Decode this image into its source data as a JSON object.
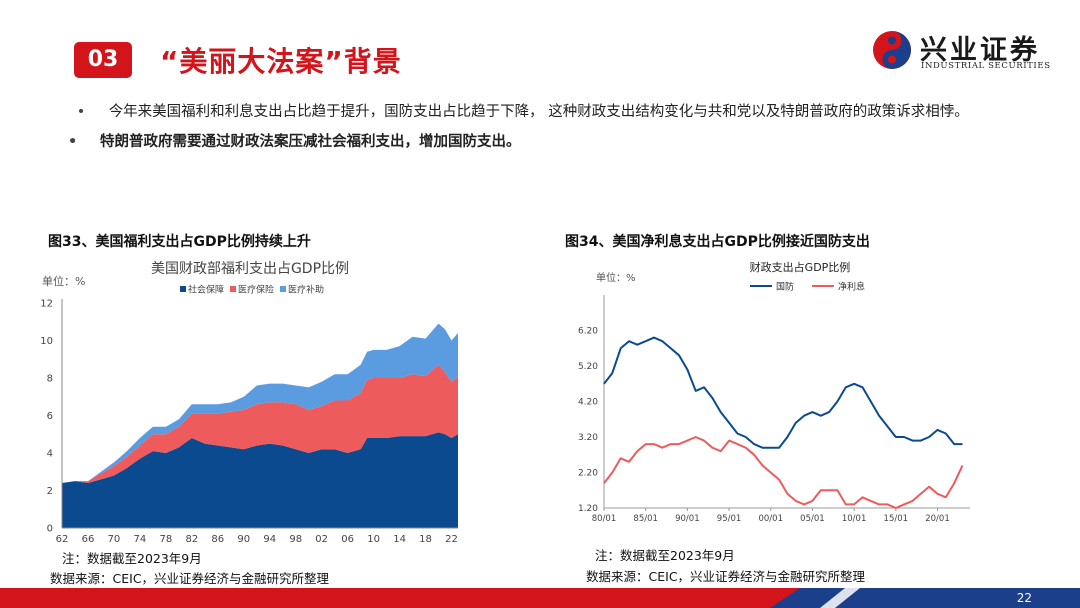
{
  "header": {
    "section_number": "03",
    "title": "“美丽大法案”背景",
    "logo_cn": "兴业证券",
    "logo_en": "INDUSTRIAL SECURITIES",
    "brand_color": "#d4141b"
  },
  "bullets": [
    {
      "marker": "•",
      "text": "今年来美国福利和利息支出占比趋于提升，国防支出占比趋于下降，  这种财政支出结构变化与共和党以及特朗普政府的政策诉求相悖。"
    },
    {
      "marker": "•",
      "text": "特朗普政府需要通过财政法案压减社会福利支出，增加国防支出。"
    }
  ],
  "figure33": {
    "caption": "图33、美国福利支出占GDP比例持续上升",
    "note": "注：数据截至2023年9月",
    "source": "数据来源：CEIC，兴业证券经济与金融研究所整理"
  },
  "figure34": {
    "caption": "图34、美国净利息支出占GDP比例接近国防支出",
    "note": "注：数据截至2023年9月",
    "source": "数据来源：CEIC，兴业证券经济与金融研究所整理"
  },
  "chart_data": [
    {
      "type": "area",
      "stacked": true,
      "title": "美国财政部福利支出占GDP比例",
      "unit_label": "单位：%",
      "ylim": [
        0,
        12
      ],
      "yticks": [
        "0",
        "2",
        "4",
        "6",
        "8",
        "10",
        "12"
      ],
      "x_tick_labels": [
        "62",
        "66",
        "70",
        "74",
        "78",
        "82",
        "86",
        "90",
        "94",
        "98",
        "02",
        "06",
        "10",
        "14",
        "18",
        "22"
      ],
      "x_start_year": 1962,
      "x_end_year": 2023,
      "x": [
        1962,
        1964,
        1966,
        1968,
        1970,
        1972,
        1974,
        1976,
        1978,
        1980,
        1982,
        1984,
        1986,
        1988,
        1990,
        1992,
        1994,
        1996,
        1998,
        2000,
        2002,
        2004,
        2006,
        2008,
        2009,
        2010,
        2012,
        2014,
        2016,
        2018,
        2020,
        2021,
        2022,
        2023
      ],
      "series": [
        {
          "name": "社会保障",
          "color": "#0b4a8f",
          "values": [
            2.4,
            2.5,
            2.4,
            2.6,
            2.8,
            3.2,
            3.7,
            4.1,
            4.0,
            4.3,
            4.8,
            4.5,
            4.4,
            4.3,
            4.2,
            4.4,
            4.5,
            4.4,
            4.2,
            4.0,
            4.2,
            4.2,
            4.0,
            4.2,
            4.8,
            4.8,
            4.8,
            4.9,
            4.9,
            4.9,
            5.1,
            5.0,
            4.8,
            5.0
          ]
        },
        {
          "name": "医疗保险",
          "color": "#ee5b5d",
          "values": [
            0.0,
            0.0,
            0.1,
            0.3,
            0.5,
            0.6,
            0.7,
            0.9,
            1.0,
            1.1,
            1.3,
            1.6,
            1.7,
            1.9,
            2.1,
            2.2,
            2.2,
            2.3,
            2.4,
            2.3,
            2.3,
            2.6,
            2.8,
            3.0,
            3.1,
            3.2,
            3.2,
            3.1,
            3.3,
            3.2,
            3.6,
            3.3,
            3.0,
            3.1
          ]
        },
        {
          "name": "医疗补助",
          "color": "#5b9be0",
          "values": [
            0.0,
            0.0,
            0.0,
            0.1,
            0.2,
            0.3,
            0.4,
            0.4,
            0.4,
            0.4,
            0.5,
            0.5,
            0.5,
            0.5,
            0.7,
            1.0,
            1.0,
            1.0,
            1.0,
            1.2,
            1.3,
            1.4,
            1.4,
            1.5,
            1.5,
            1.5,
            1.5,
            1.7,
            2.0,
            2.0,
            2.2,
            2.3,
            2.2,
            2.3
          ]
        }
      ]
    },
    {
      "type": "line",
      "title": "财政支出占GDP比例",
      "unit_label": "单位：%",
      "ylim": [
        1.2,
        7.2
      ],
      "yticks": [
        "1.20",
        "2.20",
        "3.20",
        "4.20",
        "5.20",
        "6.20"
      ],
      "x_tick_labels": [
        "80/01",
        "85/01",
        "90/01",
        "95/01",
        "00/01",
        "05/01",
        "10/01",
        "15/01",
        "20/01"
      ],
      "x_start_year": 1980,
      "x_end_year": 2023.9,
      "x": [
        1980,
        1981,
        1982,
        1983,
        1984,
        1985,
        1986,
        1987,
        1988,
        1989,
        1990,
        1991,
        1992,
        1993,
        1994,
        1995,
        1996,
        1997,
        1998,
        1999,
        2000,
        2001,
        2002,
        2003,
        2004,
        2005,
        2006,
        2007,
        2008,
        2009,
        2010,
        2011,
        2012,
        2013,
        2014,
        2015,
        2016,
        2017,
        2018,
        2019,
        2020,
        2021,
        2022,
        2023
      ],
      "series": [
        {
          "name": "国防",
          "color": "#0b4a8f",
          "values": [
            4.7,
            5.0,
            5.7,
            5.9,
            5.8,
            5.9,
            6.0,
            5.9,
            5.7,
            5.5,
            5.1,
            4.5,
            4.6,
            4.3,
            3.9,
            3.6,
            3.3,
            3.2,
            3.0,
            2.9,
            2.9,
            2.9,
            3.2,
            3.6,
            3.8,
            3.9,
            3.8,
            3.9,
            4.2,
            4.6,
            4.7,
            4.6,
            4.2,
            3.8,
            3.5,
            3.2,
            3.2,
            3.1,
            3.1,
            3.2,
            3.4,
            3.3,
            3.0,
            3.0
          ]
        },
        {
          "name": "净利息",
          "color": "#ee5b5d",
          "values": [
            1.9,
            2.2,
            2.6,
            2.5,
            2.8,
            3.0,
            3.0,
            2.9,
            3.0,
            3.0,
            3.1,
            3.2,
            3.1,
            2.9,
            2.8,
            3.1,
            3.0,
            2.9,
            2.7,
            2.4,
            2.2,
            2.0,
            1.6,
            1.4,
            1.3,
            1.4,
            1.7,
            1.7,
            1.7,
            1.3,
            1.3,
            1.5,
            1.4,
            1.3,
            1.3,
            1.2,
            1.3,
            1.4,
            1.6,
            1.8,
            1.6,
            1.5,
            1.9,
            2.4
          ]
        }
      ]
    }
  ],
  "footer": {
    "page_number": "22"
  }
}
